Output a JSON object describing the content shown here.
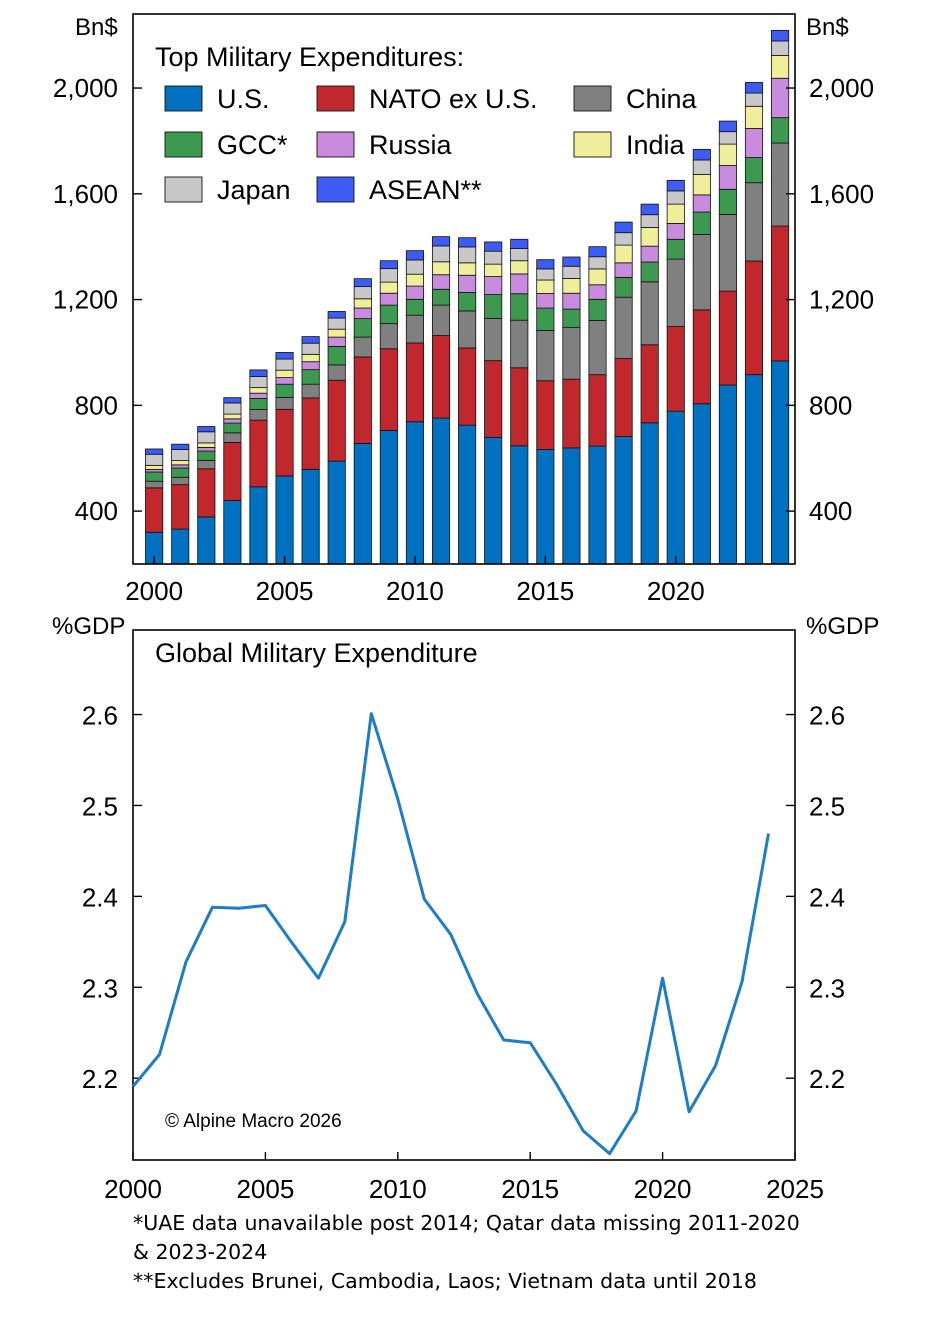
{
  "colors": {
    "US": "#0070C0",
    "NATO": "#C0282D",
    "China": "#808080",
    "GCC": "#3D9950",
    "Russia": "#C98BDE",
    "India": "#EEEE9B",
    "Japan": "#C8C8C8",
    "ASEAN": "#3D5CF5",
    "line": "#1F7DC4"
  },
  "chart_data": [
    {
      "type": "bar",
      "stacked": true,
      "title": "Top Military Expenditures:",
      "ylabel_left": "Bn$",
      "ylabel_right": "Bn$",
      "ylim": [
        200,
        2280
      ],
      "yticks": [
        400,
        800,
        1200,
        1600,
        2000
      ],
      "ytick_labels": [
        "400",
        "800",
        "1,200",
        "1,600",
        "2,000"
      ],
      "xtick_labels": [
        "2000",
        "2005",
        "2010",
        "2015",
        "2020"
      ],
      "xtick_years": [
        2000,
        2005,
        2010,
        2015,
        2020
      ],
      "legend_location": "top-left",
      "categories": [
        2000,
        2001,
        2002,
        2003,
        2004,
        2005,
        2006,
        2007,
        2008,
        2009,
        2010,
        2011,
        2012,
        2013,
        2014,
        2015,
        2016,
        2017,
        2018,
        2019,
        2020,
        2021,
        2022,
        2023,
        2024
      ],
      "series": [
        {
          "name": "U.S.",
          "key": "US",
          "values": [
            320,
            332,
            378,
            440,
            492,
            533,
            558,
            589,
            656,
            705,
            738,
            752,
            725,
            679,
            647,
            633,
            639,
            646,
            682,
            734,
            778,
            806,
            877,
            916,
            968
          ]
        },
        {
          "name": "NATO ex U.S.",
          "key": "NATO",
          "values": [
            168,
            168,
            182,
            220,
            252,
            252,
            270,
            306,
            327,
            309,
            298,
            312,
            292,
            290,
            295,
            260,
            260,
            270,
            295,
            295,
            320,
            355,
            355,
            430,
            510
          ]
        },
        {
          "name": "China",
          "key": "China",
          "values": [
            25,
            28,
            32,
            36,
            40,
            45,
            52,
            58,
            75,
            95,
            105,
            115,
            140,
            160,
            180,
            190,
            195,
            205,
            232,
            238,
            255,
            285,
            290,
            296,
            314
          ]
        },
        {
          "name": "GCC*",
          "key": "GCC",
          "values": [
            35,
            35,
            35,
            37,
            42,
            50,
            55,
            70,
            70,
            70,
            60,
            60,
            70,
            90,
            100,
            85,
            70,
            80,
            75,
            75,
            75,
            85,
            95,
            95,
            96
          ]
        },
        {
          "name": "Russia",
          "key": "Russia",
          "values": [
            10,
            12,
            14,
            16,
            20,
            25,
            30,
            35,
            40,
            45,
            50,
            55,
            65,
            68,
            75,
            55,
            60,
            55,
            55,
            60,
            60,
            65,
            90,
            110,
            149
          ]
        },
        {
          "name": "India",
          "key": "India",
          "values": [
            15,
            16,
            17,
            18,
            21,
            28,
            28,
            30,
            35,
            42,
            45,
            49,
            47,
            47,
            50,
            51,
            56,
            60,
            67,
            71,
            73,
            77,
            81,
            84,
            86
          ]
        },
        {
          "name": "Japan",
          "key": "Japan",
          "values": [
            42,
            42,
            42,
            42,
            42,
            42,
            42,
            42,
            46,
            51,
            54,
            60,
            60,
            49,
            46,
            42,
            46,
            46,
            47,
            48,
            50,
            55,
            47,
            50,
            55
          ]
        },
        {
          "name": "ASEAN**",
          "key": "ASEAN",
          "values": [
            20,
            20,
            20,
            20,
            25,
            25,
            25,
            25,
            30,
            30,
            35,
            35,
            35,
            35,
            35,
            35,
            35,
            38,
            40,
            40,
            40,
            40,
            40,
            40,
            40
          ]
        }
      ]
    },
    {
      "type": "line",
      "title": "Global Military Expenditure",
      "ylabel_left": "%GDP",
      "ylabel_right": "%GDP",
      "xlim": [
        2000,
        2025
      ],
      "ylim": [
        2.11,
        2.693
      ],
      "yticks": [
        2.2,
        2.3,
        2.4,
        2.5,
        2.6
      ],
      "ytick_labels": [
        "2.2",
        "2.3",
        "2.4",
        "2.5",
        "2.6"
      ],
      "xticks": [
        2000,
        2005,
        2010,
        2015,
        2020,
        2025
      ],
      "xtick_labels": [
        "2000",
        "2005",
        "2010",
        "2015",
        "2020",
        "2025"
      ],
      "x": [
        2000,
        2001,
        2002,
        2003,
        2004,
        2005,
        2006,
        2007,
        2008,
        2009,
        2010,
        2011,
        2012,
        2013,
        2014,
        2015,
        2016,
        2017,
        2018,
        2019,
        2020,
        2021,
        2022,
        2023,
        2024
      ],
      "y": [
        2.191,
        2.226,
        2.328,
        2.388,
        2.387,
        2.39,
        2.349,
        2.31,
        2.372,
        2.601,
        2.507,
        2.397,
        2.358,
        2.293,
        2.242,
        2.239,
        2.193,
        2.142,
        2.117,
        2.164,
        2.31,
        2.163,
        2.214,
        2.306,
        2.469
      ],
      "annotation": "© Alpine Macro 2026"
    }
  ],
  "footnotes": {
    "line1": "*UAE data unavailable post 2014; Qatar data missing 2011-2020",
    "line2": "& 2023-2024",
    "line3": "**Excludes Brunei, Cambodia, Laos; Vietnam data until 2018"
  }
}
